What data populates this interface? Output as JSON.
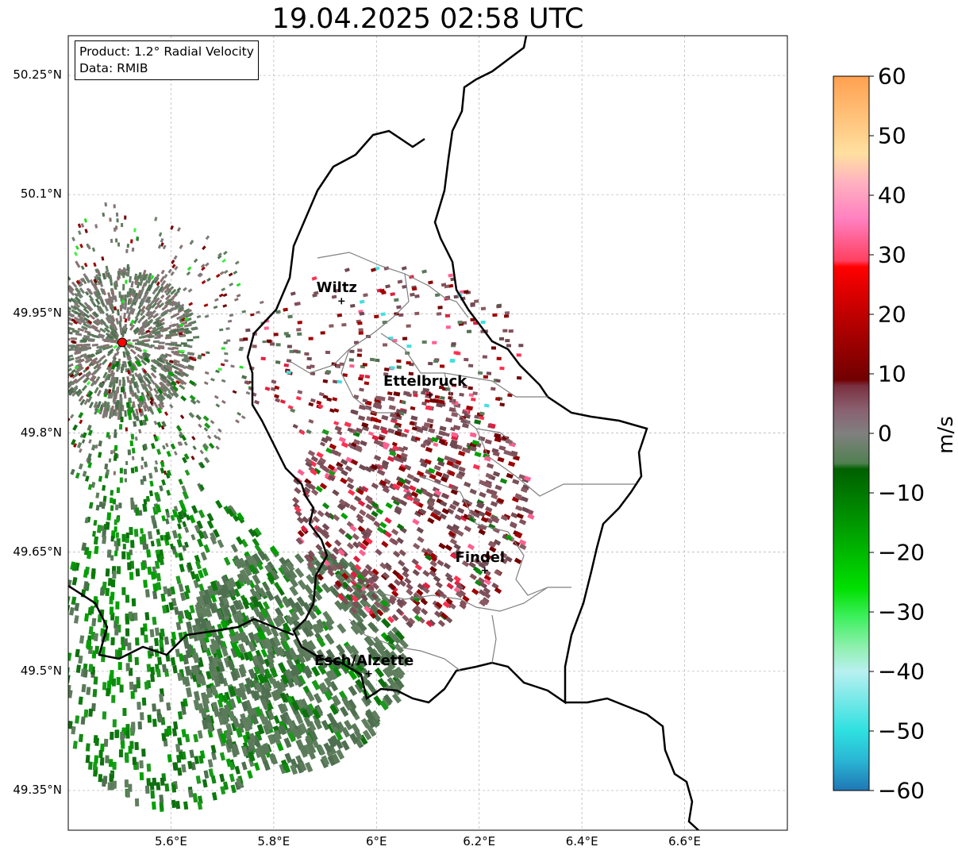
{
  "title": "19.04.2025 02:58 UTC",
  "info": {
    "product": "Product: 1.2° Radial Velocity",
    "data_source": "Data: RMIB"
  },
  "map": {
    "lon_range": [
      5.4,
      6.8
    ],
    "lat_range": [
      49.3,
      50.3
    ],
    "lat_ticks": [
      {
        "value": 50.25,
        "label": "50.25°N"
      },
      {
        "value": 50.1,
        "label": "50.1°N"
      },
      {
        "value": 49.95,
        "label": "49.95°N"
      },
      {
        "value": 49.8,
        "label": "49.8°N"
      },
      {
        "value": 49.65,
        "label": "49.65°N"
      },
      {
        "value": 49.5,
        "label": "49.5°N"
      },
      {
        "value": 49.35,
        "label": "49.35°N"
      }
    ],
    "lon_ticks": [
      {
        "value": 5.6,
        "label": "5.6°E"
      },
      {
        "value": 5.8,
        "label": "5.8°E"
      },
      {
        "value": 6.0,
        "label": "6°E"
      },
      {
        "value": 6.2,
        "label": "6.2°E"
      },
      {
        "value": 6.4,
        "label": "6.4°E"
      },
      {
        "value": 6.6,
        "label": "6.6°E"
      }
    ],
    "cities": [
      {
        "name": "Wiltz",
        "lon": 5.932,
        "lat": 49.966
      },
      {
        "name": "Ettelbruck",
        "lon": 6.104,
        "lat": 49.848
      },
      {
        "name": "Findel",
        "lon": 6.211,
        "lat": 49.627
      },
      {
        "name": "Esch/Alzette",
        "lon": 5.985,
        "lat": 49.497
      }
    ],
    "radar_site": {
      "lon": 5.505,
      "lat": 49.914
    },
    "colors": {
      "border_country": "#000000",
      "border_district": "#808080",
      "grid": "#b0b0b0",
      "radar_site": "#ff0000"
    }
  },
  "colorbar": {
    "label": "m/s",
    "min": -60,
    "max": 60,
    "ticks": [
      {
        "value": 60,
        "label": "60"
      },
      {
        "value": 50,
        "label": "50"
      },
      {
        "value": 40,
        "label": "40"
      },
      {
        "value": 30,
        "label": "30"
      },
      {
        "value": 20,
        "label": "20"
      },
      {
        "value": 10,
        "label": "10"
      },
      {
        "value": 0,
        "label": "0"
      },
      {
        "value": -10,
        "label": "−10"
      },
      {
        "value": -20,
        "label": "−20"
      },
      {
        "value": -30,
        "label": "−30"
      },
      {
        "value": -40,
        "label": "−40"
      },
      {
        "value": -50,
        "label": "−50"
      },
      {
        "value": -60,
        "label": "−60"
      }
    ],
    "stops": [
      {
        "value": -60,
        "color": "#1f77b4"
      },
      {
        "value": -55,
        "color": "#2ab5d4"
      },
      {
        "value": -50,
        "color": "#2ee0e0"
      },
      {
        "value": -40,
        "color": "#b8f0f0"
      },
      {
        "value": -36,
        "color": "#90f0b0"
      },
      {
        "value": -31,
        "color": "#40f060"
      },
      {
        "value": -26,
        "color": "#00e000"
      },
      {
        "value": -14,
        "color": "#009000"
      },
      {
        "value": -6,
        "color": "#006000"
      },
      {
        "value": -5,
        "color": "#508050"
      },
      {
        "value": 0,
        "color": "#808080"
      },
      {
        "value": 4,
        "color": "#8a6070"
      },
      {
        "value": 8,
        "color": "#7a3040"
      },
      {
        "value": 9,
        "color": "#700000"
      },
      {
        "value": 20,
        "color": "#c00000"
      },
      {
        "value": 28,
        "color": "#ff0000"
      },
      {
        "value": 29,
        "color": "#ff4060"
      },
      {
        "value": 36,
        "color": "#ff80c0"
      },
      {
        "value": 42,
        "color": "#ffb0c0"
      },
      {
        "value": 47,
        "color": "#ffe0a0"
      },
      {
        "value": 60,
        "color": "#ffa050"
      }
    ]
  }
}
